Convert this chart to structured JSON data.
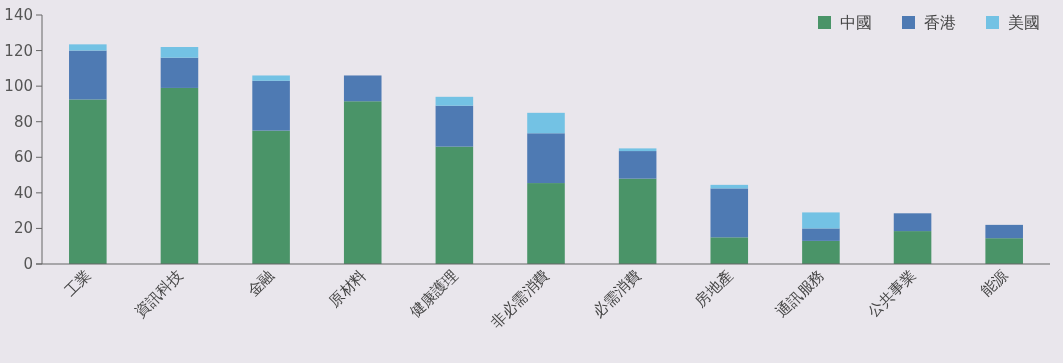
{
  "chart_data": {
    "type": "bar",
    "stacked": true,
    "categories": [
      "工業",
      "資訊科技",
      "金融",
      "原材料",
      "健康護理",
      "非必需消費",
      "必需消費",
      "房地產",
      "通訊服務",
      "公共事業",
      "能源"
    ],
    "series": [
      {
        "name": "中國",
        "color": "#4a9468",
        "values": [
          92.5,
          99,
          75,
          91.5,
          66,
          45.5,
          48,
          15,
          13,
          18.5,
          14.5
        ]
      },
      {
        "name": "香港",
        "color": "#4e7ab3",
        "values": [
          27.5,
          17,
          28,
          14.5,
          23,
          28,
          15.5,
          27.5,
          7,
          10,
          7.5
        ]
      },
      {
        "name": "美國",
        "color": "#73c2e4",
        "values": [
          3.5,
          6,
          3,
          0,
          5,
          11.5,
          1.5,
          2,
          9,
          0,
          0
        ]
      }
    ],
    "ylim": [
      0,
      140
    ],
    "yticks": [
      0,
      20,
      40,
      60,
      80,
      100,
      120,
      140
    ],
    "legend": "top right",
    "grid": false
  }
}
